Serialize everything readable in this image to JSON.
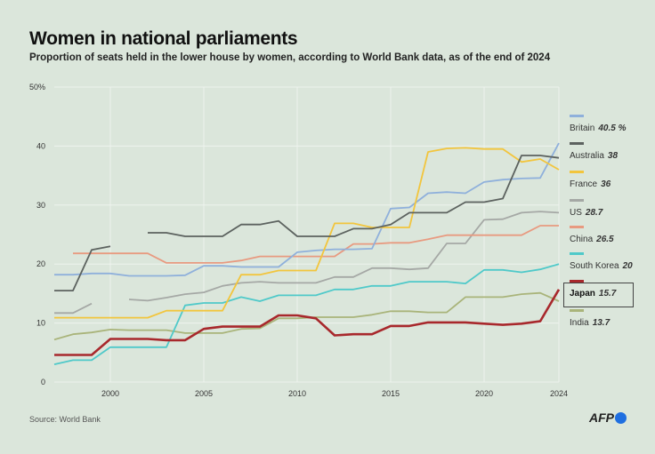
{
  "title": "Women in national parliaments",
  "subtitle": "Proportion of seats held in the lower house by women, according to World Bank data, as of the end of 2024",
  "source": "Source: World Bank",
  "logo": "AFP",
  "chart_data": {
    "type": "line",
    "title": "Women in national parliaments",
    "xlim": [
      1997,
      2024
    ],
    "ylim": [
      0,
      50
    ],
    "yticks": [
      "0",
      "10",
      "20",
      "30",
      "40",
      "50%"
    ],
    "xticks": [
      "2000",
      "2005",
      "2010",
      "2015",
      "2020",
      "2024"
    ],
    "grid": true,
    "legend_placement": "right",
    "x": [
      1997,
      1998,
      1999,
      2000,
      2001,
      2002,
      2003,
      2004,
      2005,
      2006,
      2007,
      2008,
      2009,
      2010,
      2011,
      2012,
      2013,
      2014,
      2015,
      2016,
      2017,
      2018,
      2019,
      2020,
      2021,
      2022,
      2023,
      2024
    ],
    "series": [
      {
        "name": "Britain",
        "last_label": "40.5 %",
        "color": "#8fb0db",
        "values": [
          18.2,
          18.2,
          18.4,
          18.4,
          18.0,
          18.0,
          18.0,
          18.1,
          19.7,
          19.7,
          19.5,
          19.5,
          19.5,
          22.0,
          22.3,
          22.5,
          22.5,
          22.6,
          29.4,
          29.6,
          32.0,
          32.2,
          32.0,
          33.9,
          34.3,
          34.5,
          34.6,
          40.5
        ]
      },
      {
        "name": "Australia",
        "last_label": "38",
        "color": "#5c625f",
        "values": [
          15.5,
          15.5,
          22.4,
          23.0,
          null,
          25.3,
          25.3,
          24.7,
          24.7,
          24.7,
          26.7,
          26.7,
          27.3,
          24.7,
          24.7,
          24.7,
          26.0,
          26.0,
          26.7,
          28.7,
          28.7,
          28.7,
          30.5,
          30.5,
          31.1,
          38.4,
          38.4,
          38.0
        ]
      },
      {
        "name": "France",
        "last_label": "36",
        "color": "#f2c53d",
        "values": [
          10.9,
          10.9,
          10.9,
          10.9,
          10.9,
          10.9,
          12.1,
          12.1,
          12.1,
          12.1,
          18.2,
          18.2,
          18.9,
          18.9,
          18.9,
          26.9,
          26.9,
          26.2,
          26.2,
          26.2,
          39.0,
          39.6,
          39.7,
          39.5,
          39.5,
          37.3,
          37.8,
          36.0
        ]
      },
      {
        "name": "US",
        "last_label": "28.7",
        "color": "#a5a8a5",
        "values": [
          11.7,
          11.7,
          13.3,
          null,
          14.0,
          13.8,
          14.3,
          14.9,
          15.2,
          16.3,
          16.8,
          17.0,
          16.8,
          16.8,
          16.8,
          17.8,
          17.8,
          19.3,
          19.3,
          19.1,
          19.3,
          23.5,
          23.5,
          27.5,
          27.6,
          28.7,
          28.9,
          28.7
        ]
      },
      {
        "name": "China",
        "last_label": "26.5",
        "color": "#e89a80",
        "values": [
          null,
          21.8,
          21.8,
          21.8,
          21.8,
          21.8,
          20.2,
          20.2,
          20.2,
          20.2,
          20.6,
          21.3,
          21.3,
          21.3,
          21.3,
          21.3,
          23.4,
          23.4,
          23.6,
          23.6,
          24.2,
          24.9,
          24.9,
          24.9,
          24.9,
          24.9,
          26.5,
          26.5
        ]
      },
      {
        "name": "South Korea",
        "last_label": "20",
        "color": "#4fc9c9",
        "values": [
          3.0,
          3.7,
          3.7,
          5.9,
          5.9,
          5.9,
          5.9,
          13.0,
          13.4,
          13.4,
          14.4,
          13.7,
          14.7,
          14.7,
          14.7,
          15.7,
          15.7,
          16.3,
          16.3,
          17.0,
          17.0,
          17.0,
          16.7,
          19.0,
          19.0,
          18.6,
          19.1,
          20.0
        ]
      },
      {
        "name": "Japan",
        "last_label": "15.7",
        "color": "#a8282c",
        "highlight": true,
        "values": [
          4.6,
          4.6,
          4.6,
          7.3,
          7.3,
          7.3,
          7.1,
          7.1,
          9.0,
          9.4,
          9.4,
          9.4,
          11.3,
          11.3,
          10.8,
          7.9,
          8.1,
          8.1,
          9.5,
          9.5,
          10.1,
          10.1,
          10.1,
          9.9,
          9.7,
          9.9,
          10.3,
          15.7
        ]
      },
      {
        "name": "India",
        "last_label": "13.7",
        "color": "#a9b47a",
        "values": [
          7.2,
          8.1,
          8.4,
          8.9,
          8.8,
          8.8,
          8.8,
          8.3,
          8.3,
          8.3,
          9.0,
          9.1,
          10.8,
          10.8,
          11.0,
          11.0,
          11.0,
          11.4,
          12.0,
          12.0,
          11.8,
          11.8,
          14.4,
          14.4,
          14.4,
          14.9,
          15.1,
          13.7
        ]
      }
    ]
  }
}
